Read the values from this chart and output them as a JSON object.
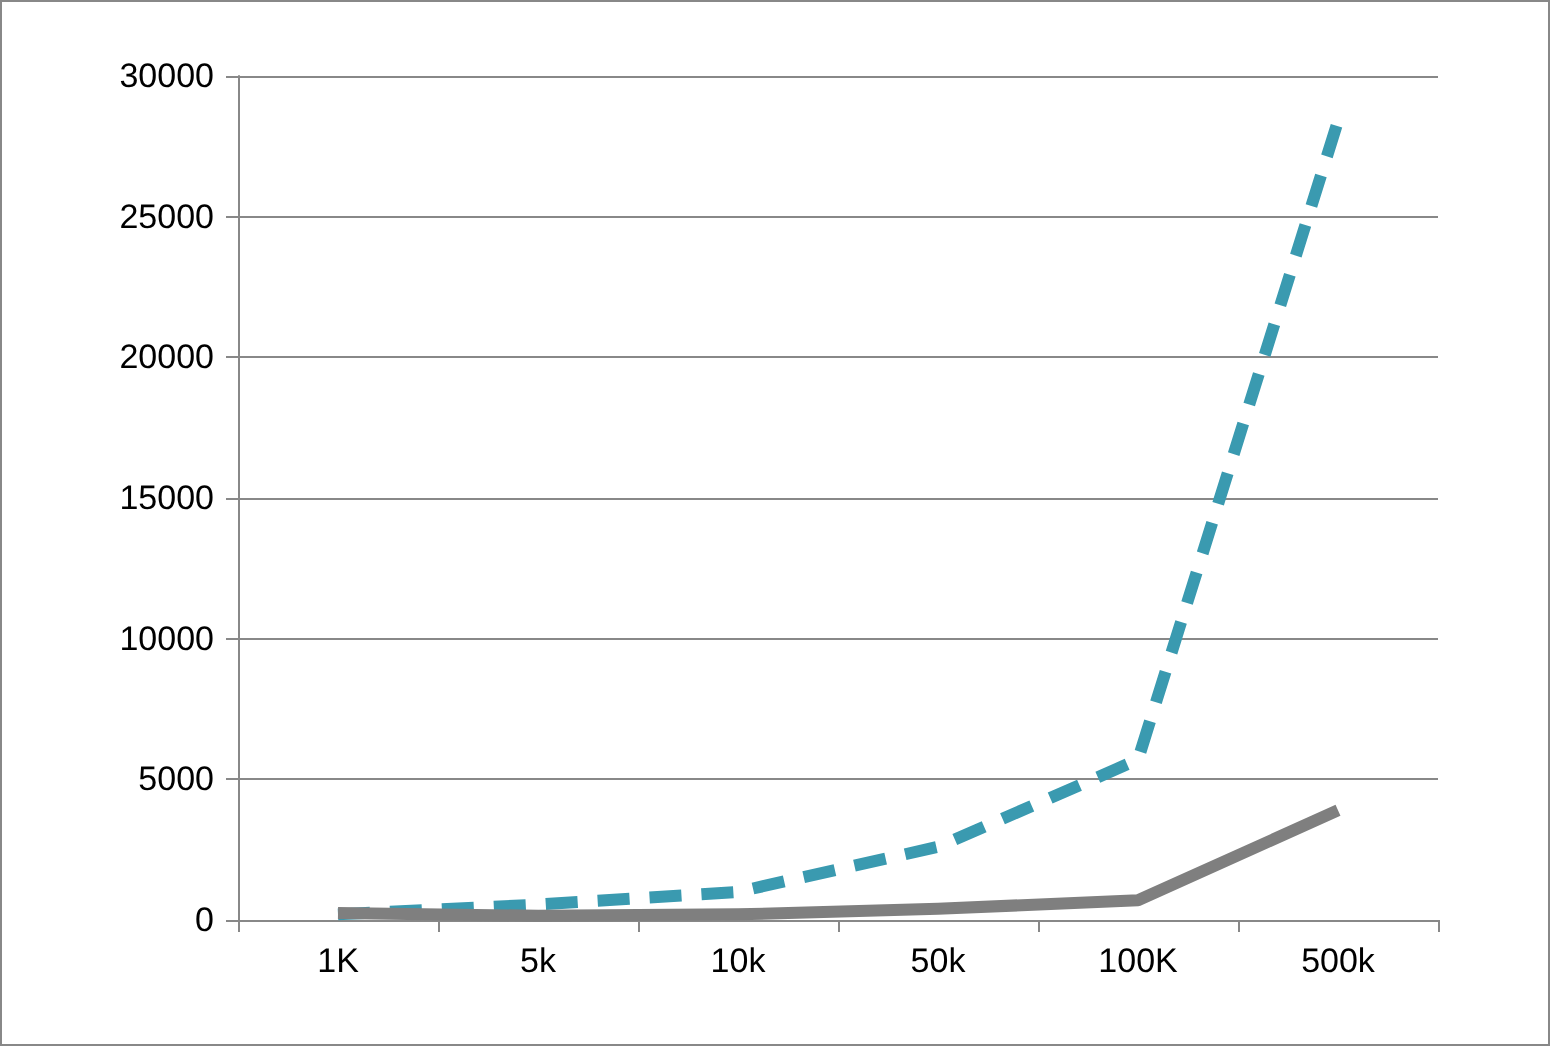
{
  "chart_data": {
    "type": "line",
    "categories": [
      "1K",
      "5k",
      "10k",
      "50k",
      "100K",
      "500k"
    ],
    "series": [
      {
        "color": "#3a9ab0",
        "line_style": "dashed",
        "values": [
          200,
          550,
          1000,
          2600,
          5700,
          28400
        ]
      },
      {
        "color": "#7f7f7f",
        "line_style": "solid",
        "values": [
          250,
          150,
          200,
          400,
          700,
          3900
        ]
      }
    ],
    "ylim": [
      0,
      30000
    ],
    "yticks": [
      0,
      5000,
      10000,
      15000,
      20000,
      25000,
      30000
    ],
    "grid": "y",
    "marker": "none"
  }
}
